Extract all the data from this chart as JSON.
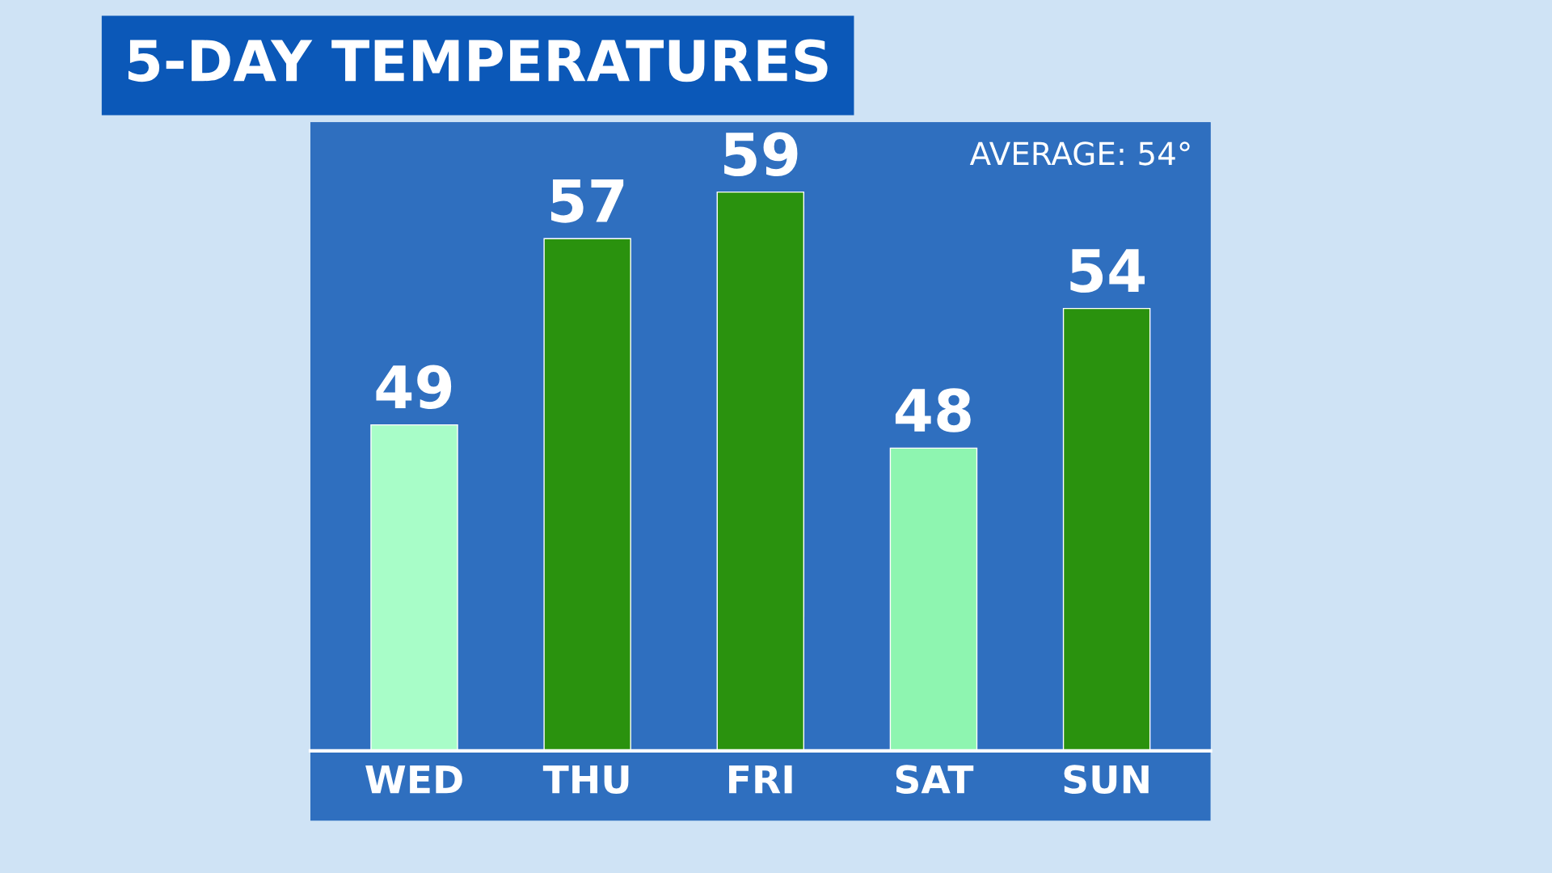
{
  "chart_data": {
    "type": "bar",
    "title": "5-DAY TEMPERATURES",
    "categories": [
      "WED",
      "THU",
      "FRI",
      "SAT",
      "SUN"
    ],
    "values": [
      49,
      57,
      59,
      48,
      54
    ],
    "colors": [
      "#a8fdc8",
      "#2a920e",
      "#2a920e",
      "#8ef5b0",
      "#2a920e"
    ],
    "ylim": [
      35,
      62
    ],
    "tick_labels": "x",
    "data_labels": true,
    "grid": false,
    "legend": false,
    "annotations": [
      "AVERAGE: 54°"
    ]
  }
}
